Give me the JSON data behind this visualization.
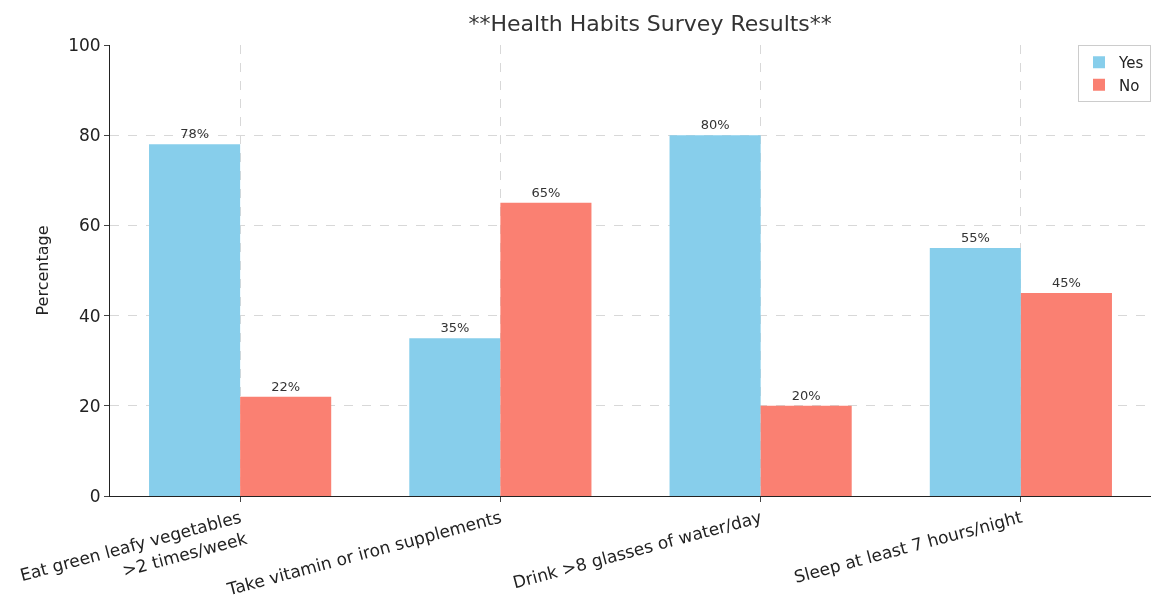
{
  "chart_data": {
    "type": "bar",
    "title": "**Health Habits Survey Results**",
    "ylabel": "Percentage",
    "categories": [
      "Eat green leafy vegetables\n>2 times/week",
      "Take vitamin or iron supplements",
      "Drink >8 glasses of water/day",
      "Sleep at least 7 hours/night"
    ],
    "series": [
      {
        "name": "Yes",
        "color": "#87ceeb",
        "values": [
          78,
          35,
          80,
          55
        ],
        "value_labels": [
          "78%",
          "35%",
          "80%",
          "55%"
        ]
      },
      {
        "name": "No",
        "color": "#fa8072",
        "values": [
          22,
          65,
          20,
          45
        ],
        "value_labels": [
          "22%",
          "65%",
          "20%",
          "45%"
        ]
      }
    ],
    "ylim": [
      0,
      100
    ],
    "yticks": [
      0,
      20,
      40,
      60,
      80,
      100
    ],
    "grid": true,
    "legend": "top right"
  }
}
